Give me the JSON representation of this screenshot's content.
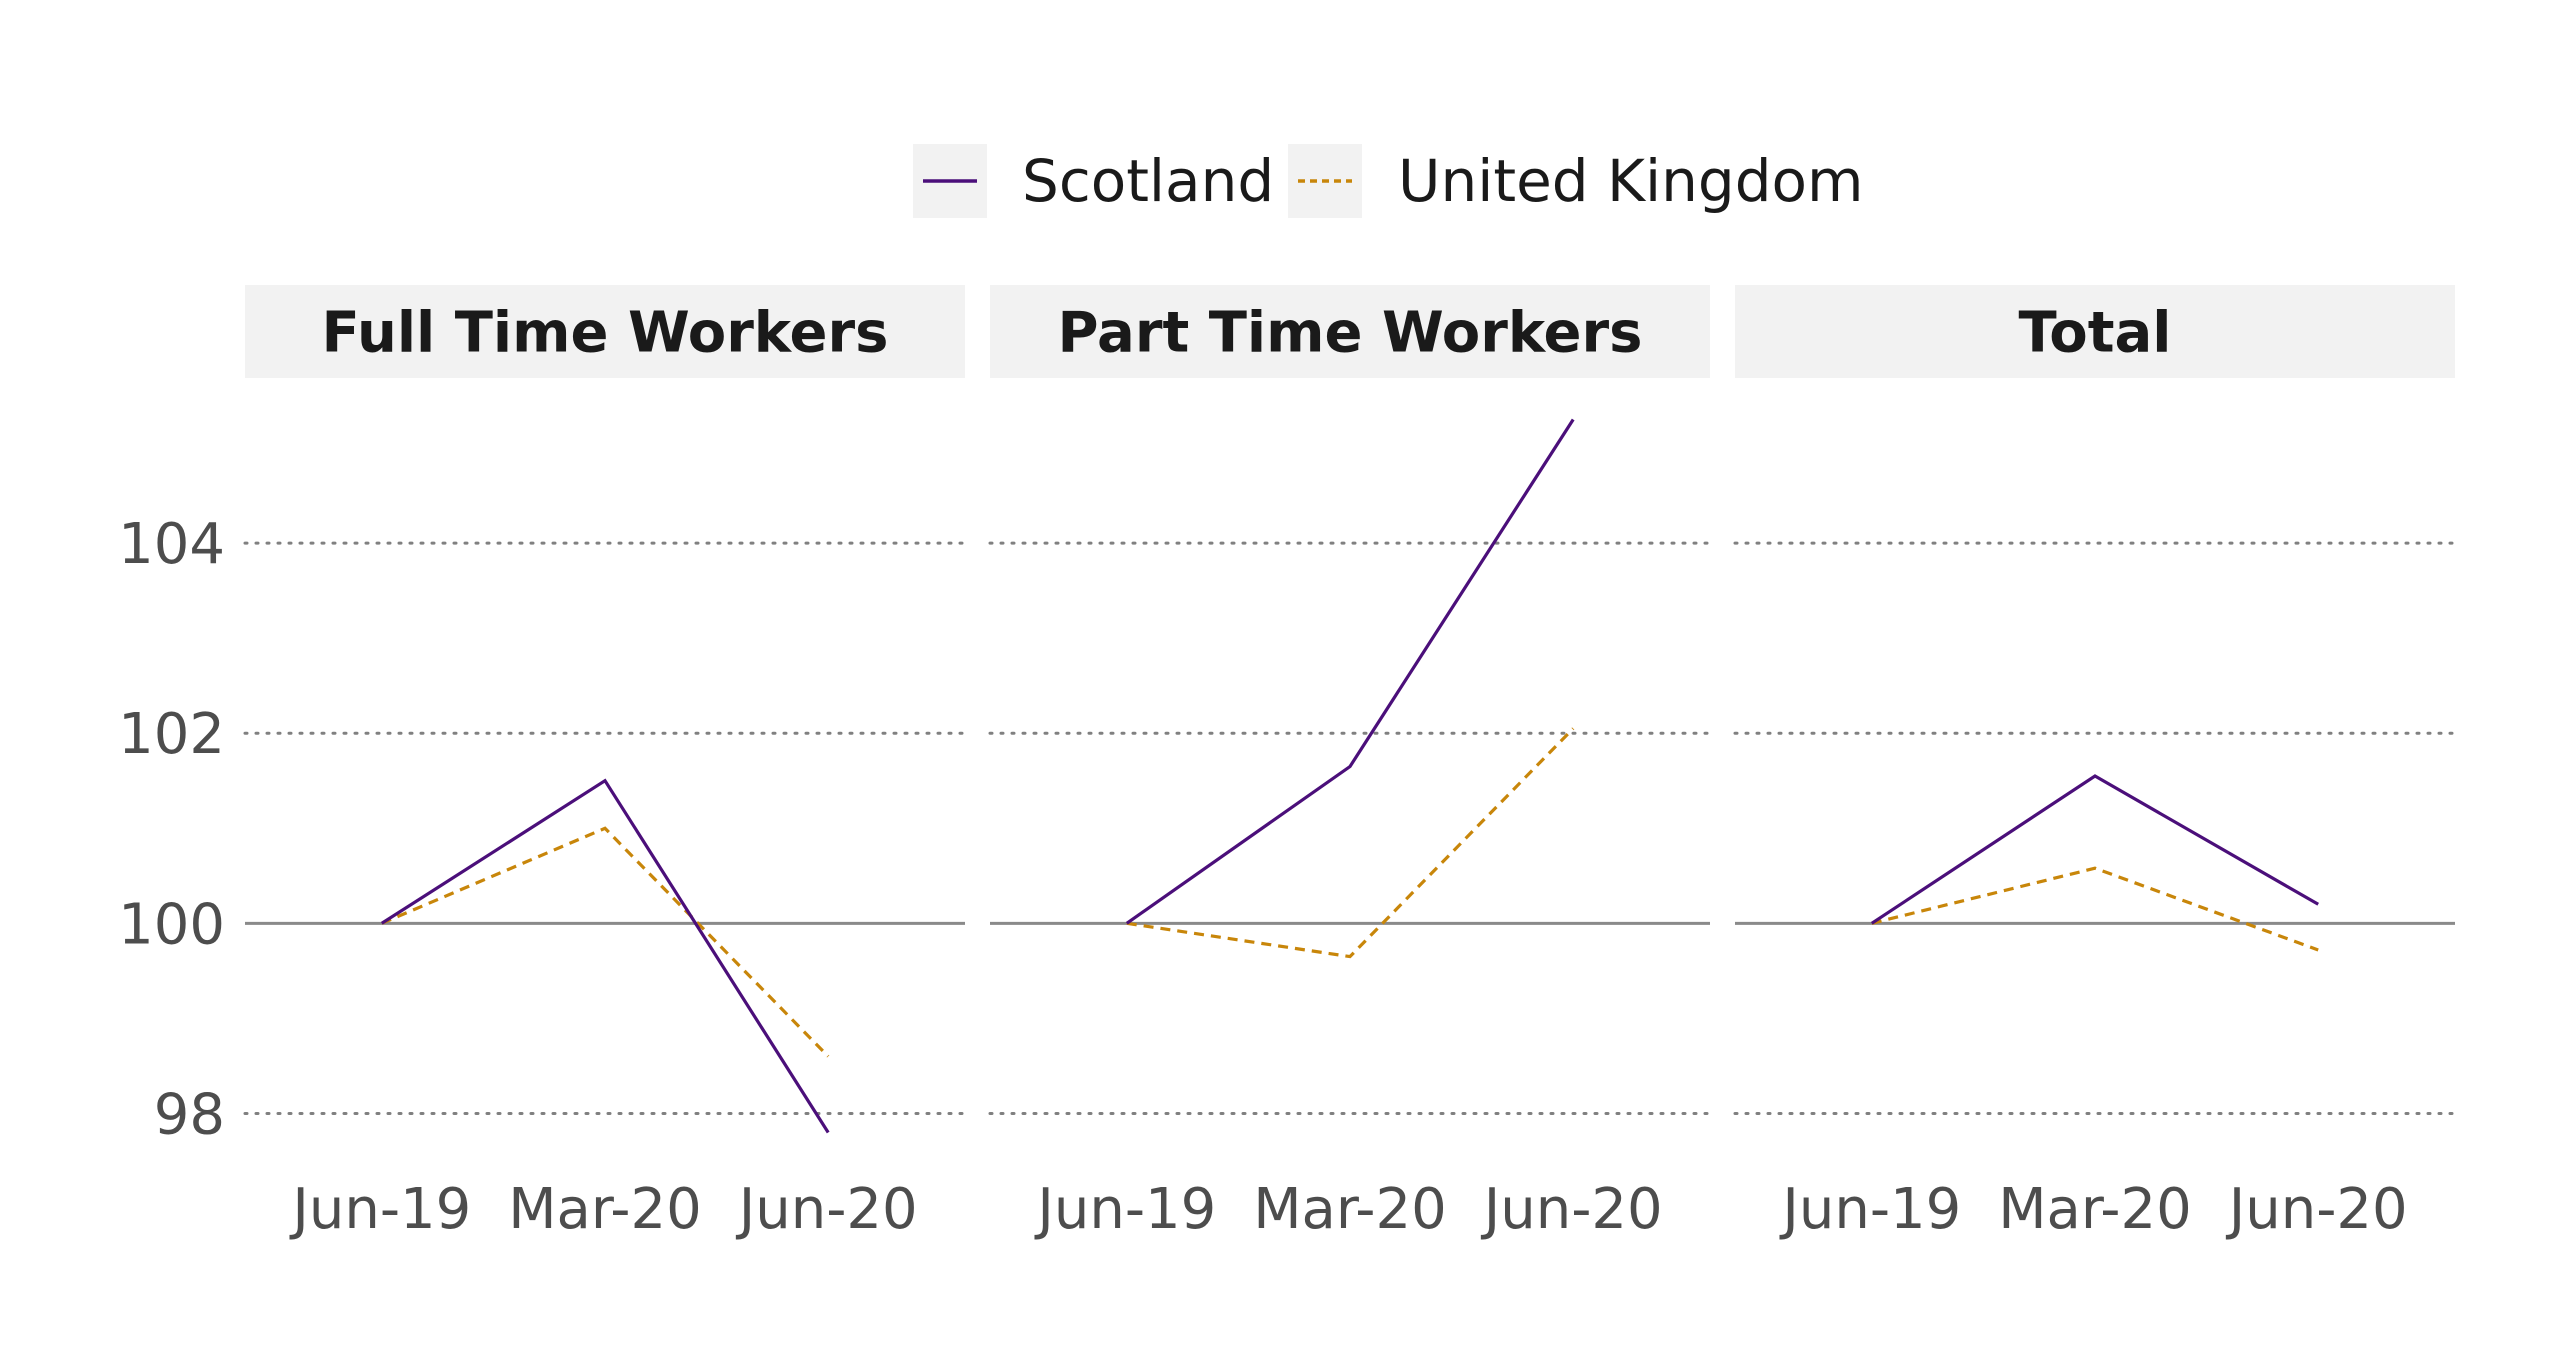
{
  "chart_data": {
    "type": "line",
    "facets": [
      "Full Time Workers",
      "Part Time Workers",
      "Total"
    ],
    "categories": [
      "Jun-19",
      "Mar-20",
      "Jun-20"
    ],
    "ylim": [
      97.3,
      105.4
    ],
    "yticks": [
      98,
      100,
      102,
      104
    ],
    "baseline": 100,
    "series": [
      {
        "name": "Scotland",
        "color": "#4b0f7a",
        "style": "solid",
        "values": [
          [
            100,
            101.5,
            97.8
          ],
          [
            100,
            101.65,
            105.3
          ],
          [
            100,
            101.55,
            100.2
          ]
        ]
      },
      {
        "name": "United Kingdom",
        "color": "#c8860a",
        "style": "dotted",
        "values": [
          [
            100,
            101.0,
            98.6
          ],
          [
            100,
            99.65,
            102.05
          ],
          [
            100,
            100.58,
            99.72
          ]
        ]
      }
    ],
    "legend": {
      "position": "top",
      "labels": [
        "Scotland",
        "United Kingdom"
      ]
    },
    "colors": {
      "strip_bg": "#f2f2f2",
      "grid": "#808080",
      "baseline": "#8a8a8a"
    }
  }
}
